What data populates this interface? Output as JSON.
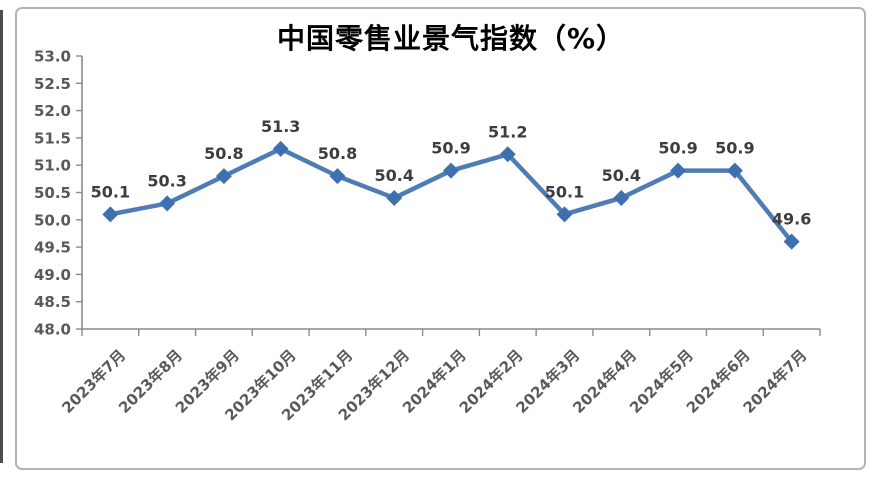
{
  "chart_data": {
    "type": "line",
    "title": "中国零售业景气指数（%）",
    "categories": [
      "2023年7月",
      "2023年8月",
      "2023年9月",
      "2023年10月",
      "2023年11月",
      "2023年12月",
      "2024年1月",
      "2024年2月",
      "2024年3月",
      "2024年4月",
      "2024年5月",
      "2024年6月",
      "2024年7月"
    ],
    "values": [
      50.1,
      50.3,
      50.8,
      51.3,
      50.8,
      50.4,
      50.9,
      51.2,
      50.1,
      50.4,
      50.9,
      50.9,
      49.6
    ],
    "y_tick_labels": [
      "48.0",
      "48.5",
      "49.0",
      "49.5",
      "50.0",
      "50.5",
      "51.0",
      "51.5",
      "52.0",
      "52.5",
      "53.0"
    ],
    "ylim": [
      48.0,
      53.0
    ],
    "y_tick_step": 0.5,
    "xlabel": "",
    "ylabel": "",
    "grid": false,
    "legend": "none",
    "marker": "diamond",
    "data_labels": "above",
    "x_label_rotation_deg": 45,
    "line_color": "#4f7cb5",
    "marker_color": "#3e6fae",
    "axis_color": "#8a8a8a",
    "tick_label_color": "#595959",
    "data_label_color": "#3d3d3d",
    "title_color": "#000000",
    "border_color": "#b3b3b3"
  }
}
